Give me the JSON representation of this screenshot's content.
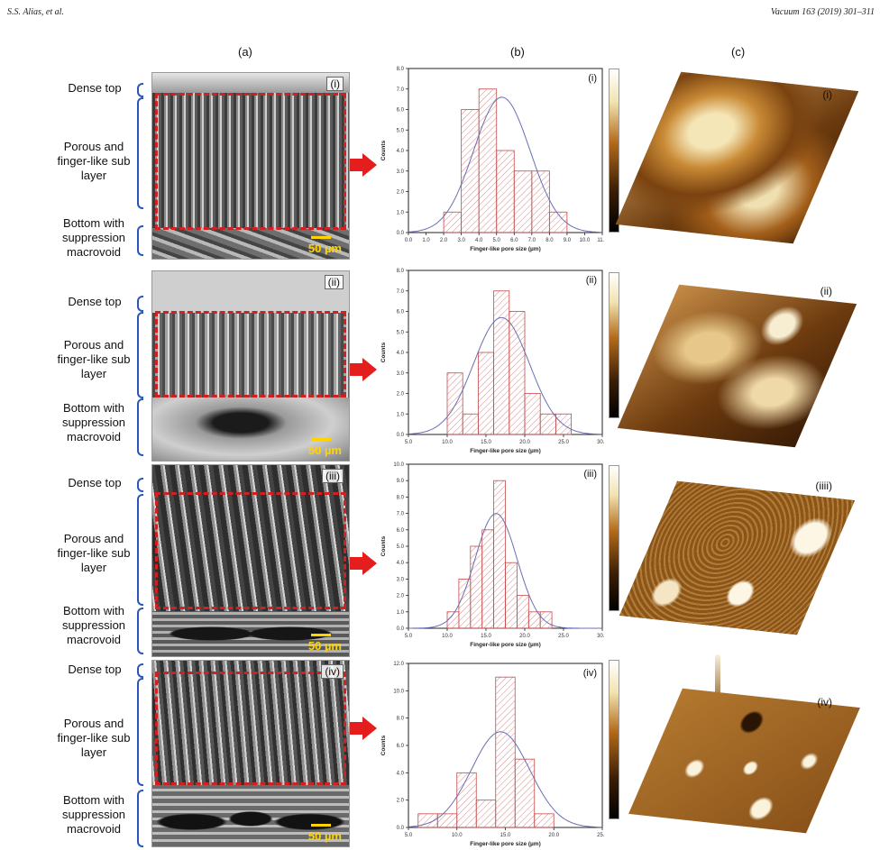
{
  "header": {
    "left": "S.S. Alias, et al.",
    "right": "Vacuum 163 (2019) 301–311"
  },
  "columns": [
    "(a)",
    "(b)",
    "(c)"
  ],
  "layer_labels": {
    "dense": "Dense top",
    "porous": "Porous and finger-like sub layer",
    "bottom": "Bottom with suppression macrovoid"
  },
  "scale_bar": "50 µm",
  "panels": [
    {
      "roman": "(i)"
    },
    {
      "roman": "(ii)"
    },
    {
      "roman": "(iii)"
    },
    {
      "roman": "(iiii)"
    },
    {
      "roman": "(iv)"
    }
  ],
  "colors": {
    "dash": "#d21f1f",
    "arrow": "#e41d1d",
    "brace": "#2b56b8",
    "bar_hatch": "#d88a8a",
    "fit_line": "#6a6fb0",
    "afm_high": "#f2e3b0",
    "afm_low": "#3a1d05"
  },
  "chart_data": [
    {
      "type": "bar",
      "panel": "(i)",
      "xlabel": "Finger-like pore size (µm)",
      "ylabel": "Counts",
      "xlim": [
        0.0,
        11.0
      ],
      "ylim": [
        0,
        8.0
      ],
      "xticks": [
        "0.0",
        "1.0",
        "2.0",
        "3.0",
        "4.0",
        "5.0",
        "6.0",
        "7.0",
        "8.0",
        "9.0",
        "10.0",
        "11.0"
      ],
      "yticks": [
        "0.0",
        "1.0",
        "2.0",
        "3.0",
        "4.0",
        "5.0",
        "6.0",
        "7.0",
        "8.0"
      ],
      "bin_edges": [
        2.0,
        3.0,
        4.0,
        5.0,
        6.0,
        7.0,
        8.0,
        9.0
      ],
      "values": [
        1,
        6,
        7,
        4,
        3,
        3,
        1
      ],
      "fit": {
        "mean": 5.3,
        "peak": 6.6,
        "sd": 1.6
      }
    },
    {
      "type": "bar",
      "panel": "(ii)",
      "xlabel": "Finger-like pore size (µm)",
      "ylabel": "Counts",
      "xlim": [
        5.0,
        30.0
      ],
      "ylim": [
        0,
        8.0
      ],
      "xticks": [
        "5.0",
        "10.0",
        "15.0",
        "20.0",
        "25.0",
        "30.0"
      ],
      "yticks": [
        "0.0",
        "1.0",
        "2.0",
        "3.0",
        "4.0",
        "5.0",
        "6.0",
        "7.0",
        "8.0"
      ],
      "bin_edges": [
        10.0,
        12.0,
        14.0,
        16.0,
        18.0,
        20.0,
        22.0,
        24.0,
        26.0
      ],
      "values": [
        3,
        1,
        4,
        7,
        6,
        2,
        1,
        1
      ],
      "fit": {
        "mean": 17.0,
        "peak": 5.7,
        "sd": 3.6
      }
    },
    {
      "type": "bar",
      "panel": "(iii)",
      "xlabel": "Finger-like pore size (µm)",
      "ylabel": "Counts",
      "xlim": [
        5.0,
        30.0
      ],
      "ylim": [
        0,
        10.0
      ],
      "xticks": [
        "5.0",
        "10.0",
        "15.0",
        "20.0",
        "25.0",
        "30.0"
      ],
      "yticks": [
        "0.0",
        "1.0",
        "2.0",
        "3.0",
        "4.0",
        "5.0",
        "6.0",
        "7.0",
        "8.0",
        "9.0",
        "10.0"
      ],
      "bin_edges": [
        10.0,
        11.5,
        13.0,
        14.5,
        16.0,
        17.5,
        19.0,
        20.5,
        22.0,
        23.5
      ],
      "values": [
        1,
        3,
        5,
        6,
        9,
        4,
        2,
        1,
        1
      ],
      "fit": {
        "mean": 16.3,
        "peak": 7.0,
        "sd": 2.7
      }
    },
    {
      "type": "bar",
      "panel": "(iv)",
      "xlabel": "Finger-like pore size (µm)",
      "ylabel": "Counts",
      "xlim": [
        5.0,
        25.0
      ],
      "ylim": [
        0,
        12.0
      ],
      "xticks": [
        "5.0",
        "10.0",
        "15.0",
        "20.0",
        "25.0"
      ],
      "yticks": [
        "0.0",
        "2.0",
        "4.0",
        "6.0",
        "8.0",
        "10.0",
        "12.0"
      ],
      "bin_edges": [
        6.0,
        8.0,
        10.0,
        12.0,
        14.0,
        16.0,
        18.0,
        20.0
      ],
      "values": [
        1,
        1,
        4,
        2,
        11,
        5,
        1
      ],
      "fit": {
        "mean": 14.5,
        "peak": 7.0,
        "sd": 3.0
      }
    }
  ]
}
